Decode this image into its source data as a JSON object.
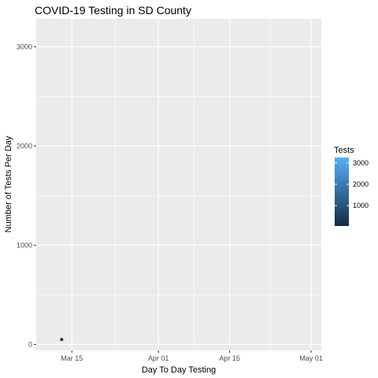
{
  "chart_data": {
    "type": "scatter",
    "title": "COVID-19 Testing in SD County",
    "xlabel": "Day To Day Testing",
    "ylabel": "Number of Tests Per Day",
    "x_tick_labels": [
      "Mar 15",
      "Apr 01",
      "Apr 15",
      "May 01"
    ],
    "x_tick_dates": [
      "2020-03-15",
      "2020-04-01",
      "2020-04-15",
      "2020-05-01"
    ],
    "xlim": [
      "2020-03-08",
      "2020-05-03"
    ],
    "y_ticks": [
      0,
      1000,
      2000,
      3000
    ],
    "y_tick_labels": [
      "0",
      "1000",
      "2000",
      "3000"
    ],
    "ylim": [
      -60,
      3280
    ],
    "points": [
      {
        "x": "2020-03-13",
        "y": 50
      }
    ],
    "color_scale": {
      "name": "Tests",
      "range": [
        50,
        3250
      ],
      "low_color": "#132b43",
      "high_color": "#56b1f7",
      "legend_ticks": [
        1000,
        2000,
        3000
      ],
      "legend_tick_labels": [
        "1000",
        "2000",
        "3000"
      ]
    },
    "grid": true,
    "legend_position": "right",
    "panel_background": "#ebebeb",
    "grid_color": "#ffffff"
  }
}
